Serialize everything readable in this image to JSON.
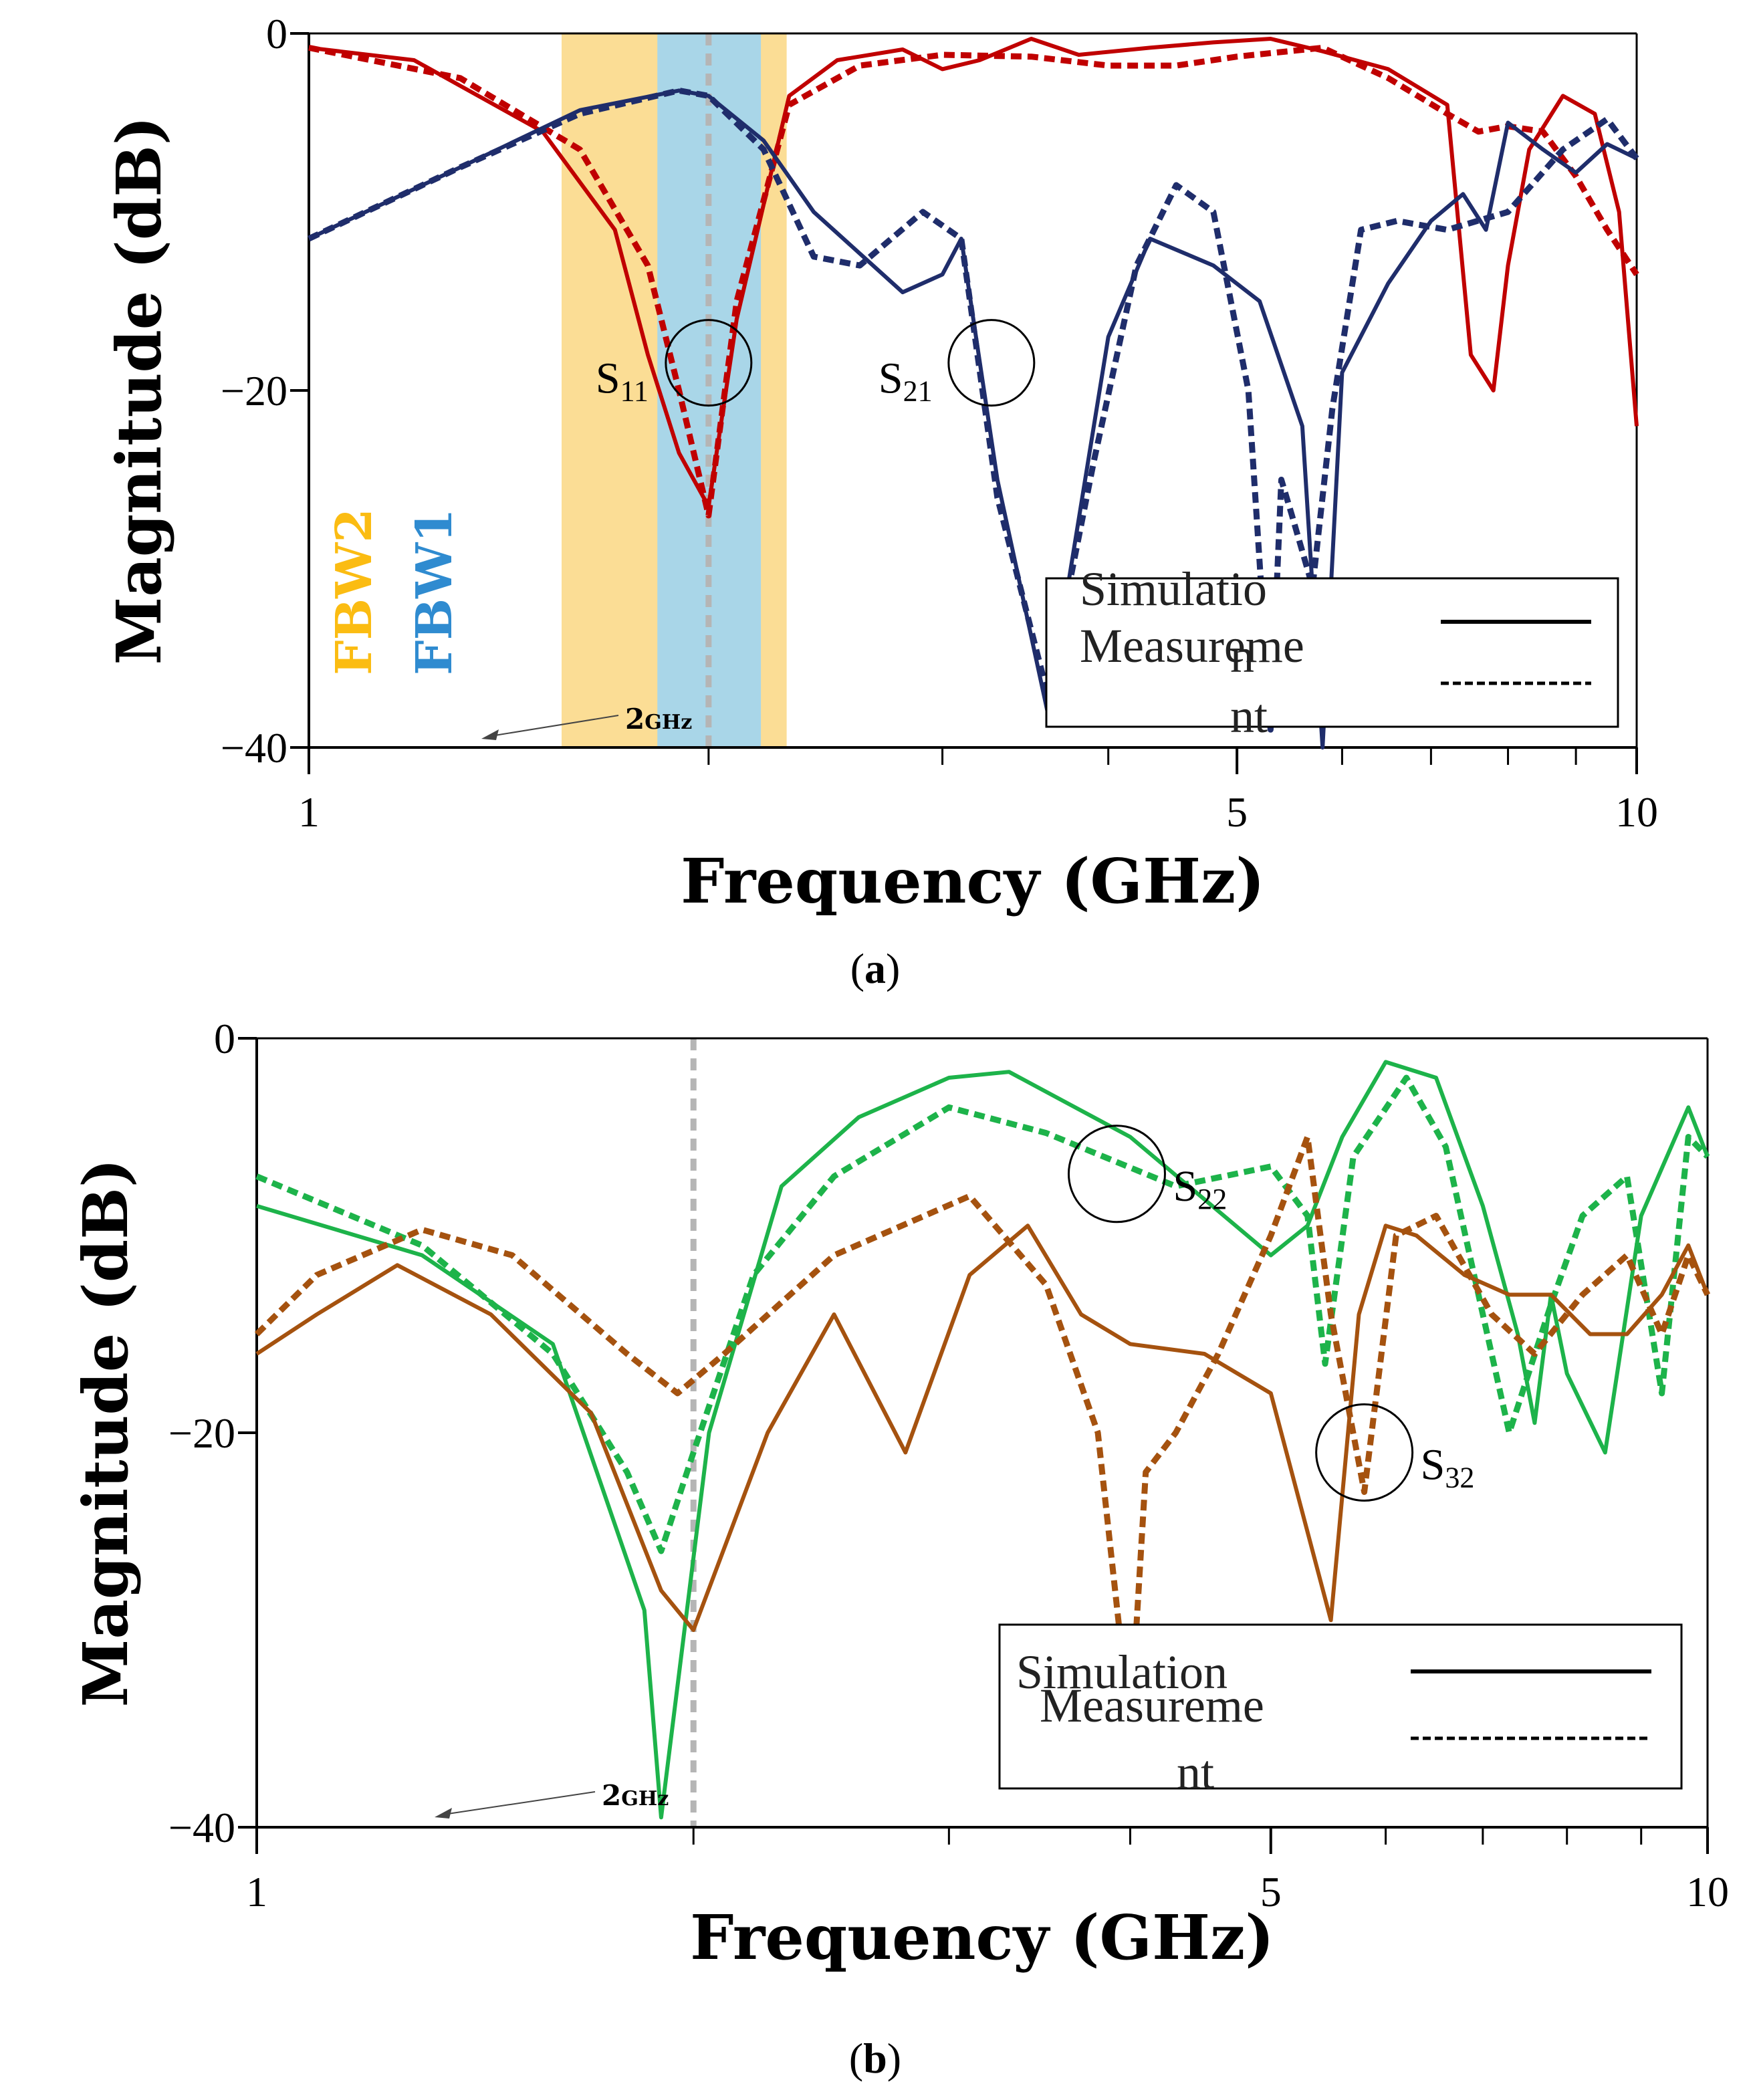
{
  "chart_data": [
    {
      "panel": "a",
      "type": "line",
      "caption": "a",
      "xlabel": "Frequency (GHz)",
      "ylabel": "Magnitude (dB)",
      "xscale": "log",
      "xlim": [
        1,
        10
      ],
      "ylim": [
        -40,
        0
      ],
      "x_tick_labels": [
        {
          "v": 1,
          "t": "1"
        },
        {
          "v": 5,
          "t": "5"
        },
        {
          "v": 10,
          "t": "10"
        }
      ],
      "x_minor_ticks": [
        2,
        3,
        4,
        6,
        7,
        8,
        9
      ],
      "y_tick_labels": [
        {
          "v": 0,
          "t": "0"
        },
        {
          "v": -20,
          "t": "−20"
        },
        {
          "v": -40,
          "t": "−40"
        }
      ],
      "bands": [
        {
          "label": "FBW2",
          "x0": 1.55,
          "x1": 2.29,
          "color": "#fbdd95",
          "text_color": "#fbbc12"
        },
        {
          "label": "FBW1",
          "x0": 1.83,
          "x1": 2.19,
          "color": "#a9d6e8",
          "text_color": "#2f8bd0"
        }
      ],
      "marker_line": {
        "x": 2.0,
        "label": "2",
        "unit": "GHz"
      },
      "annotations": [
        {
          "text": "S",
          "sub": "11",
          "x": 2.0,
          "y": -19.5
        },
        {
          "text": "S",
          "sub": "21",
          "x": 3.1,
          "y": -19.5
        }
      ],
      "legend": {
        "position": "bottom-right",
        "entries": [
          {
            "label": "Simulation",
            "style": "solid"
          },
          {
            "label": "Measurement",
            "style": "dashed"
          }
        ]
      },
      "series": [
        {
          "name": "S11 Simulation",
          "color": "#c00000",
          "style": "solid",
          "x": [
            1.0,
            1.2,
            1.5,
            1.7,
            1.8,
            1.9,
            2.0,
            2.1,
            2.3,
            2.5,
            2.8,
            3.0,
            3.2,
            3.5,
            3.8,
            4.3,
            4.8,
            5.3,
            5.8,
            6.5,
            7.2,
            7.5,
            7.8,
            8.0,
            8.3,
            8.8,
            9.3,
            9.7,
            10.0
          ],
          "y": [
            -0.8,
            -1.5,
            -5.5,
            -11,
            -18,
            -23.5,
            -26.5,
            -16,
            -3.5,
            -1.5,
            -0.9,
            -2.0,
            -1.5,
            -0.3,
            -1.2,
            -0.8,
            -0.5,
            -0.3,
            -1.0,
            -2.0,
            -4.0,
            -18,
            -20,
            -13,
            -6.5,
            -3.5,
            -4.5,
            -10,
            -22
          ]
        },
        {
          "name": "S11 Measurement",
          "color": "#c00000",
          "style": "dashed",
          "x": [
            1.0,
            1.3,
            1.6,
            1.8,
            1.9,
            2.0,
            2.1,
            2.3,
            2.6,
            3.0,
            3.5,
            4.0,
            4.5,
            5.0,
            5.8,
            6.5,
            7.2,
            7.6,
            8.0,
            8.5,
            9.0,
            9.5,
            10.0
          ],
          "y": [
            -0.8,
            -2.5,
            -6.5,
            -13,
            -20,
            -27,
            -15,
            -4,
            -1.8,
            -1.2,
            -1.3,
            -1.8,
            -1.8,
            -1.3,
            -0.8,
            -2.5,
            -4.5,
            -5.5,
            -5.2,
            -5.5,
            -8,
            -11,
            -13.5
          ]
        },
        {
          "name": "S21 Simulation",
          "color": "#1f2d6b",
          "style": "solid",
          "x": [
            1.0,
            1.3,
            1.6,
            1.9,
            2.0,
            2.2,
            2.4,
            2.8,
            3.0,
            3.1,
            3.3,
            3.6,
            4.0,
            4.3,
            4.8,
            5.2,
            5.6,
            5.8,
            6.0,
            6.5,
            7.0,
            7.4,
            7.7,
            8.0,
            8.5,
            9.0,
            9.5,
            10.0
          ],
          "y": [
            -11.5,
            -7.5,
            -4.3,
            -3.2,
            -3.5,
            -6,
            -10,
            -14.5,
            -13.5,
            -11.5,
            -25,
            -38,
            -17,
            -11.5,
            -13,
            -15,
            -22,
            -40,
            -19,
            -14,
            -10.5,
            -9,
            -11,
            -5,
            -6.5,
            -7.8,
            -6.2,
            -7
          ]
        },
        {
          "name": "S21 Measurement",
          "color": "#1f2d6b",
          "style": "dashed",
          "x": [
            1.0,
            1.3,
            1.6,
            1.9,
            2.0,
            2.2,
            2.4,
            2.6,
            2.9,
            3.1,
            3.3,
            3.6,
            3.9,
            4.2,
            4.5,
            4.8,
            5.1,
            5.3,
            5.4,
            5.5,
            5.7,
            5.9,
            6.2,
            6.6,
            7.2,
            8.0,
            8.8,
            9.5,
            10.0
          ],
          "y": [
            -11.5,
            -7.5,
            -4.5,
            -3.2,
            -3.5,
            -6.5,
            -12.5,
            -13,
            -10,
            -11.5,
            -26,
            -37,
            -24,
            -13,
            -8.5,
            -10,
            -20,
            -39,
            -25,
            -27,
            -31,
            -21,
            -11,
            -10.5,
            -11,
            -10,
            -6.5,
            -4.8,
            -7
          ]
        }
      ]
    },
    {
      "panel": "b",
      "type": "line",
      "caption": "b",
      "xlabel": "Frequency (GHz)",
      "ylabel": "Magnitude (dB)",
      "xscale": "log",
      "xlim": [
        1,
        10
      ],
      "ylim": [
        -40,
        0
      ],
      "x_tick_labels": [
        {
          "v": 1,
          "t": "1"
        },
        {
          "v": 5,
          "t": "5"
        },
        {
          "v": 10,
          "t": "10"
        }
      ],
      "x_minor_ticks": [
        2,
        3,
        4,
        6,
        7,
        8,
        9
      ],
      "y_tick_labels": [
        {
          "v": 0,
          "t": "0"
        },
        {
          "v": -20,
          "t": "−20"
        },
        {
          "v": -40,
          "t": "−40"
        }
      ],
      "marker_line": {
        "x": 2.0,
        "label": "2",
        "unit": "GHz"
      },
      "annotations": [
        {
          "text": "S",
          "sub": "22",
          "x": 4.0,
          "y": -4.5
        },
        {
          "text": "S",
          "sub": "32",
          "x": 5.8,
          "y": -21
        }
      ],
      "legend": {
        "position": "bottom-right",
        "entries": [
          {
            "label": "Simulation",
            "style": "solid"
          },
          {
            "label": "Measurement",
            "style": "dashed"
          }
        ]
      },
      "series": [
        {
          "name": "S22 Simulation",
          "color": "#1db34a",
          "style": "solid",
          "x": [
            1.0,
            1.3,
            1.6,
            1.85,
            1.9,
            2.05,
            2.3,
            2.6,
            3.0,
            3.3,
            4.0,
            5.0,
            5.3,
            5.6,
            6.0,
            6.5,
            7.0,
            7.4,
            7.6,
            7.8,
            8.0,
            8.5,
            9.0,
            9.7,
            10.0
          ],
          "y": [
            -8.5,
            -11,
            -15.5,
            -29,
            -39.5,
            -20,
            -7.5,
            -4,
            -2,
            -1.7,
            -5,
            -11,
            -9.5,
            -5,
            -1.2,
            -2,
            -8.5,
            -15,
            -19.5,
            -13,
            -17,
            -21,
            -9,
            -3.5,
            -6
          ]
        },
        {
          "name": "S22 Measurement",
          "color": "#1db34a",
          "style": "dashed",
          "x": [
            1.0,
            1.3,
            1.6,
            1.8,
            1.9,
            2.0,
            2.2,
            2.5,
            3.0,
            3.5,
            4.3,
            5.0,
            5.3,
            5.45,
            5.7,
            6.2,
            6.6,
            7.0,
            7.3,
            7.8,
            8.2,
            8.8,
            9.3,
            9.7,
            10.0
          ],
          "y": [
            -7,
            -10.5,
            -16,
            -22,
            -26,
            -21,
            -12,
            -7,
            -3.5,
            -4.8,
            -7.5,
            -6.5,
            -9,
            -16.5,
            -6,
            -2,
            -5.5,
            -14,
            -20,
            -13.5,
            -9,
            -7,
            -18,
            -5,
            -6
          ]
        },
        {
          "name": "S32 Simulation",
          "color": "#a5520f",
          "style": "solid",
          "x": [
            1.0,
            1.1,
            1.25,
            1.45,
            1.7,
            1.9,
            2.0,
            2.25,
            2.5,
            2.8,
            3.1,
            3.4,
            3.7,
            4.0,
            4.5,
            5.0,
            5.5,
            5.75,
            6.0,
            6.3,
            6.8,
            7.3,
            7.8,
            8.3,
            8.8,
            9.3,
            9.7,
            10.0
          ],
          "y": [
            -16,
            -14,
            -11.5,
            -14,
            -19,
            -28,
            -30,
            -20,
            -14,
            -21,
            -12,
            -9.5,
            -14,
            -15.5,
            -16,
            -18,
            -29.5,
            -14,
            -9.5,
            -10,
            -12,
            -13,
            -13,
            -15,
            -15,
            -13,
            -10.5,
            -13
          ]
        },
        {
          "name": "S32 Measurement",
          "color": "#a5520f",
          "style": "dashed",
          "x": [
            1.0,
            1.1,
            1.3,
            1.5,
            1.8,
            1.95,
            2.1,
            2.5,
            3.1,
            3.5,
            3.8,
            4.0,
            4.1,
            4.3,
            4.6,
            5.0,
            5.3,
            5.5,
            5.8,
            6.1,
            6.5,
            7.1,
            7.6,
            8.2,
            8.8,
            9.3,
            9.7,
            10.0
          ],
          "y": [
            -15,
            -12,
            -9.7,
            -11,
            -16,
            -18,
            -16,
            -11,
            -8,
            -12.5,
            -20,
            -35,
            -22,
            -20,
            -16,
            -10,
            -5,
            -14,
            -23,
            -10,
            -9,
            -14,
            -16,
            -13,
            -11,
            -15,
            -11,
            -13
          ]
        }
      ]
    }
  ]
}
